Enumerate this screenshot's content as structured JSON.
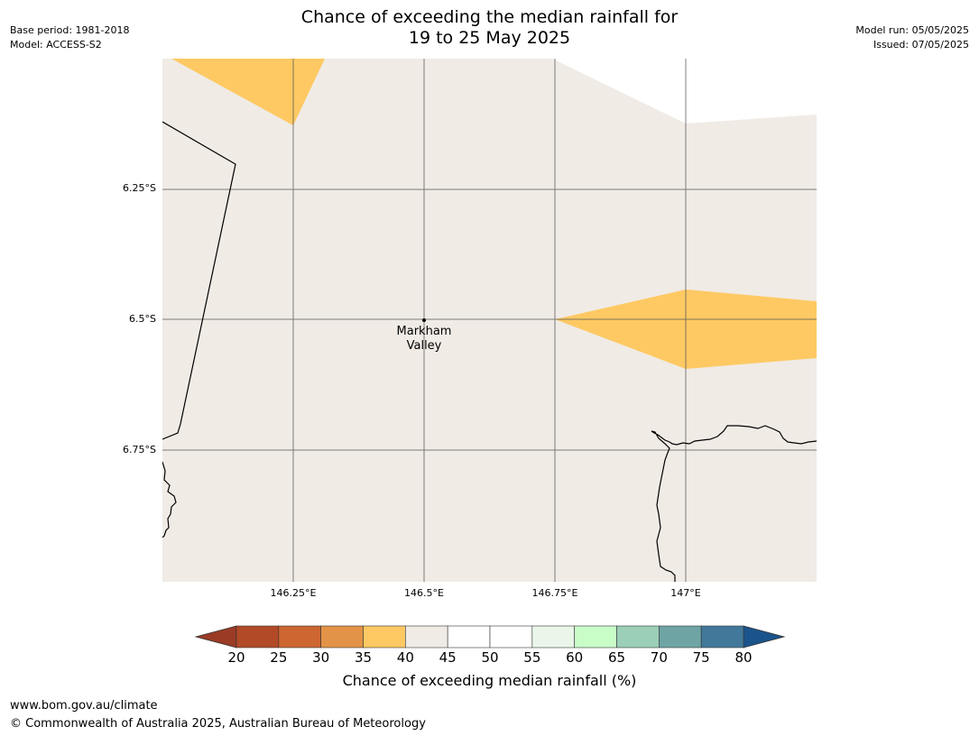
{
  "header": {
    "title_line1": "Chance of exceeding the median rainfall for",
    "title_line2": "19 to 25 May 2025",
    "base_period": "Base period: 1981-2018",
    "model": "Model: ACCESS-S2",
    "model_run": "Model run: 05/05/2025",
    "issued": "Issued: 07/05/2025"
  },
  "map": {
    "background_color": "#f0ebe5",
    "highlight_color": "#fec963",
    "lat_labels": [
      "6.25°S",
      "6.5°S",
      "6.75°S"
    ],
    "lon_labels": [
      "146.25°E",
      "146.5°E",
      "146.75°E",
      "147°E"
    ],
    "place": {
      "name_line1": "Markham",
      "name_line2": "Valley"
    }
  },
  "colorbar": {
    "ticks": [
      "20",
      "25",
      "30",
      "35",
      "40",
      "45",
      "50",
      "55",
      "60",
      "65",
      "70",
      "75",
      "80"
    ],
    "low_color": "#9a3b26",
    "high_color": "#1b548c",
    "colors": [
      "#b24a27",
      "#cd6631",
      "#e39347",
      "#fec963",
      "#f0ebe5",
      "#ffffff",
      "#ffffff",
      "#e9f6e9",
      "#c9fdc8",
      "#9ccfb7",
      "#6ea4a4",
      "#42789a"
    ],
    "label": "Chance of exceeding median rainfall (%)"
  },
  "footer": {
    "url": "www.bom.gov.au/climate",
    "copyright": "© Commonwealth of Australia 2025, Australian Bureau of Meteorology"
  }
}
